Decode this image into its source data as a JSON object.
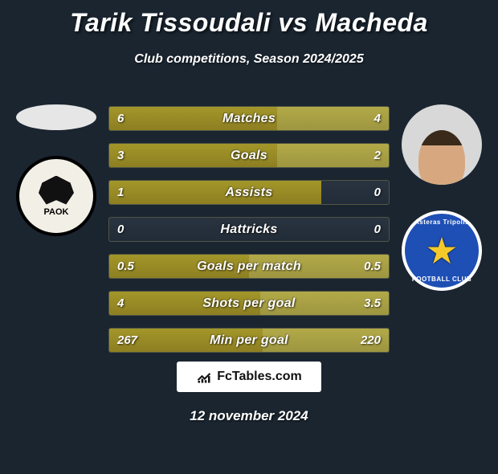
{
  "title": "Tarik Tissoudali vs Macheda",
  "subtitle": "Club competitions, Season 2024/2025",
  "date": "12 november 2024",
  "footer_brand": "FcTables.com",
  "players": {
    "left_name": "Tarik Tissoudali",
    "right_name": "Macheda",
    "left_club": "PAOK",
    "right_club": "Asteras Tripolis",
    "right_club_ring_top": "Asteras Tripolis",
    "right_club_ring_bottom": "FOOTBALL CLUB"
  },
  "colors": {
    "background": "#1a2530",
    "bar_left_fill": "#8d7f22",
    "bar_right_fill": "#9e9640",
    "bar_track": "#222c38",
    "text": "#ffffff",
    "footer_bg": "#ffffff",
    "paok_bg": "#f2efe6",
    "asteras_bg": "#1e4fb5",
    "asteras_star": "#f6c92b"
  },
  "stats": [
    {
      "label": "Matches",
      "left_val": "6",
      "right_val": "4",
      "left_pct": 60,
      "right_pct": 40
    },
    {
      "label": "Goals",
      "left_val": "3",
      "right_val": "2",
      "left_pct": 60,
      "right_pct": 40
    },
    {
      "label": "Assists",
      "left_val": "1",
      "right_val": "0",
      "left_pct": 76,
      "right_pct": 0
    },
    {
      "label": "Hattricks",
      "left_val": "0",
      "right_val": "0",
      "left_pct": 0,
      "right_pct": 0
    },
    {
      "label": "Goals per match",
      "left_val": "0.5",
      "right_val": "0.5",
      "left_pct": 50,
      "right_pct": 50
    },
    {
      "label": "Shots per goal",
      "left_val": "4",
      "right_val": "3.5",
      "left_pct": 54,
      "right_pct": 46
    },
    {
      "label": "Min per goal",
      "left_val": "267",
      "right_val": "220",
      "left_pct": 55,
      "right_pct": 45
    }
  ]
}
